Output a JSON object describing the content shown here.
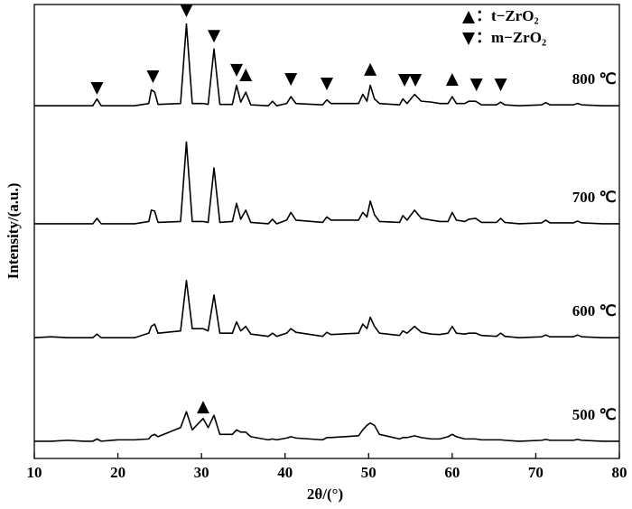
{
  "chart_data": {
    "type": "line",
    "x_label": "2θ/(°)",
    "y_label": "Intensity/(a.u.)",
    "xlim": [
      10,
      80
    ],
    "xticks": [
      10,
      20,
      30,
      40,
      50,
      60,
      70,
      80
    ],
    "ylim": [
      0,
      100
    ],
    "x": [
      10,
      12,
      14,
      16,
      17.0,
      17.5,
      18.0,
      20,
      22,
      23.7,
      24.0,
      24.4,
      24.8,
      27.5,
      28.2,
      28.9,
      30.2,
      30.8,
      31.5,
      32.2,
      33.7,
      34.2,
      34.7,
      35.3,
      35.9,
      38.0,
      38.5,
      39.0,
      40.2,
      40.7,
      41.3,
      44.5,
      45.0,
      45.5,
      48.8,
      49.3,
      49.8,
      50.2,
      50.7,
      51.3,
      53.7,
      54.1,
      54.6,
      55.5,
      56.3,
      57.5,
      58.5,
      59.5,
      60.0,
      60.5,
      61.5,
      62.0,
      62.8,
      63.5,
      65.3,
      65.8,
      66.3,
      68,
      70.7,
      71.2,
      71.7,
      74.5,
      75.0,
      75.5,
      78,
      80
    ],
    "series": [
      {
        "name": "800 ℃",
        "color": "#000000",
        "values": [
          77.7,
          77.7,
          77.7,
          77.7,
          77.7,
          79.2,
          77.7,
          77.7,
          77.7,
          78.2,
          81.2,
          80.7,
          78.0,
          78.2,
          95.7,
          78.2,
          78.2,
          78.0,
          90.2,
          78.0,
          78.0,
          82.2,
          78.5,
          80.7,
          77.9,
          77.7,
          78.7,
          77.7,
          78.2,
          79.7,
          78.2,
          77.9,
          79.0,
          78.2,
          78.2,
          80.2,
          78.7,
          82.2,
          79.2,
          78.2,
          77.9,
          79.2,
          78.2,
          80.2,
          78.7,
          78.5,
          78.2,
          78.2,
          79.7,
          78.2,
          78.2,
          78.7,
          78.7,
          77.9,
          77.9,
          78.5,
          77.9,
          77.7,
          77.9,
          78.4,
          77.9,
          77.9,
          78.2,
          77.9,
          77.7,
          77.7
        ]
      },
      {
        "name": "700 ℃",
        "color": "#000000",
        "values": [
          51.7,
          51.7,
          51.7,
          51.7,
          51.7,
          52.9,
          51.7,
          51.7,
          51.7,
          52.2,
          54.7,
          54.5,
          52.0,
          52.2,
          69.7,
          52.2,
          52.2,
          52.0,
          64.0,
          52.0,
          52.2,
          56.2,
          52.7,
          54.7,
          52.0,
          51.7,
          52.7,
          51.7,
          52.5,
          54.2,
          52.5,
          52.0,
          53.2,
          52.5,
          52.5,
          54.2,
          53.2,
          56.7,
          53.7,
          52.2,
          52.0,
          53.5,
          52.5,
          54.7,
          52.9,
          52.5,
          52.2,
          52.2,
          54.2,
          52.5,
          52.2,
          52.7,
          52.9,
          52.0,
          52.0,
          52.9,
          52.0,
          51.7,
          51.9,
          52.5,
          51.9,
          51.9,
          52.3,
          51.9,
          51.7,
          51.7
        ]
      },
      {
        "name": "600 ℃",
        "color": "#000000",
        "values": [
          26.6,
          26.8,
          26.6,
          26.6,
          26.6,
          27.4,
          26.6,
          26.6,
          26.6,
          27.6,
          29.1,
          29.6,
          27.6,
          28.1,
          39.2,
          28.6,
          28.6,
          28.1,
          36.0,
          27.6,
          27.6,
          30.1,
          28.1,
          29.1,
          27.4,
          26.9,
          27.6,
          26.9,
          27.6,
          28.6,
          27.8,
          26.9,
          27.8,
          27.3,
          27.6,
          29.6,
          28.6,
          31.1,
          29.1,
          27.6,
          27.1,
          28.1,
          27.6,
          29.1,
          27.8,
          27.4,
          27.3,
          27.6,
          29.1,
          27.6,
          27.4,
          27.6,
          27.6,
          27.1,
          26.9,
          27.6,
          26.9,
          26.6,
          26.8,
          27.2,
          26.8,
          26.8,
          27.2,
          26.8,
          26.6,
          26.6
        ]
      },
      {
        "name": "500 ℃",
        "color": "#000000",
        "values": [
          3.8,
          3.8,
          4.0,
          3.8,
          3.8,
          4.3,
          3.8,
          4.1,
          4.1,
          4.3,
          5.0,
          5.3,
          4.8,
          6.8,
          10.3,
          6.3,
          8.8,
          6.8,
          9.5,
          5.3,
          5.3,
          6.3,
          5.8,
          5.8,
          4.8,
          4.1,
          4.3,
          4.1,
          4.5,
          4.8,
          4.5,
          4.1,
          4.6,
          4.6,
          5.0,
          6.3,
          7.3,
          7.8,
          7.3,
          5.3,
          4.3,
          4.6,
          4.6,
          5.0,
          4.6,
          4.3,
          4.3,
          4.8,
          5.3,
          4.8,
          4.3,
          4.3,
          4.3,
          4.1,
          4.1,
          4.1,
          4.0,
          3.8,
          4.0,
          4.2,
          4.0,
          4.0,
          4.2,
          4.0,
          3.8,
          3.8
        ]
      }
    ],
    "phases": [
      {
        "phase": "t",
        "label": "：t−ZrO₂"
      },
      {
        "phase": "m",
        "label": "：m−ZrO₂"
      }
    ],
    "markers": [
      {
        "phase": "m",
        "x": 17.5,
        "y": 81.5
      },
      {
        "phase": "m",
        "x": 24.2,
        "y": 84.1
      },
      {
        "phase": "m",
        "x": 28.2,
        "y": 98.6
      },
      {
        "phase": "m",
        "x": 31.5,
        "y": 93.0
      },
      {
        "phase": "m",
        "x": 34.2,
        "y": 85.5
      },
      {
        "phase": "t",
        "x": 35.3,
        "y": 84.5
      },
      {
        "phase": "m",
        "x": 40.7,
        "y": 83.5
      },
      {
        "phase": "m",
        "x": 45.0,
        "y": 82.5
      },
      {
        "phase": "t",
        "x": 50.2,
        "y": 85.7
      },
      {
        "phase": "m",
        "x": 54.3,
        "y": 83.3
      },
      {
        "phase": "m",
        "x": 55.6,
        "y": 83.3
      },
      {
        "phase": "t",
        "x": 60.0,
        "y": 83.5
      },
      {
        "phase": "m",
        "x": 62.9,
        "y": 82.3
      },
      {
        "phase": "m",
        "x": 65.8,
        "y": 82.3
      },
      {
        "phase": "t",
        "x": 30.2,
        "y": 11.3
      }
    ]
  }
}
